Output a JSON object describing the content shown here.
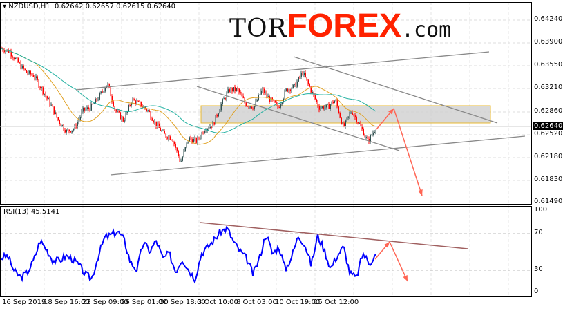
{
  "header": {
    "symbol": "NZDUSD,H1",
    "open": "0.62642",
    "high": "0.62657",
    "low": "0.62615",
    "close": "0.62640"
  },
  "logo": {
    "part1": "TOR",
    "part2": "FOREX",
    "part3": ".com"
  },
  "price_axis": {
    "ticks": [
      "0.64240",
      "0.63900",
      "0.63550",
      "0.63210",
      "0.62860",
      "0.62520",
      "0.62180",
      "0.61830",
      "0.61490"
    ],
    "current": "0.62640"
  },
  "rsi": {
    "label": "RSI(13) 45.5141",
    "levels": [
      "100",
      "70",
      "30",
      "0"
    ],
    "path": [
      43,
      45,
      28,
      22,
      27,
      40,
      62,
      52,
      40,
      40,
      45,
      42,
      35,
      25,
      20,
      45,
      65,
      68,
      72,
      63,
      38,
      30,
      60,
      50,
      62,
      42,
      48,
      28,
      42,
      30,
      20,
      48,
      55,
      63,
      72,
      75,
      60,
      50,
      42,
      25,
      43,
      70,
      47,
      55,
      30,
      45,
      67,
      58,
      35,
      67,
      52,
      31,
      45,
      55,
      26,
      21,
      48,
      37,
      46
    ]
  },
  "time_axis": {
    "labels": [
      "16 Sep 2019",
      "18 Sep 16:00",
      "23 Sep 09:00",
      "26 Sep 01:00",
      "30 Sep 18:00",
      "3 Oct 10:00",
      "8 Oct 03:00",
      "10 Oct 19:00",
      "15 Oct 12:00"
    ]
  },
  "price_path": [
    0.6382,
    0.6377,
    0.6361,
    0.6346,
    0.6341,
    0.632,
    0.6299,
    0.6274,
    0.6258,
    0.6263,
    0.6289,
    0.6294,
    0.631,
    0.633,
    0.6289,
    0.6274,
    0.6305,
    0.6299,
    0.6289,
    0.6268,
    0.6253,
    0.6248,
    0.6212,
    0.6248,
    0.6243,
    0.6263,
    0.6268,
    0.6299,
    0.632,
    0.632,
    0.6299,
    0.6294,
    0.632,
    0.6305,
    0.6294,
    0.632,
    0.6325,
    0.6346,
    0.632,
    0.6294,
    0.6294,
    0.6305,
    0.6263,
    0.6289,
    0.6268,
    0.6243,
    0.6264
  ],
  "colors": {
    "bull": "#2f4f4f",
    "bear": "#ff0000",
    "ma_fast": "#e0a020",
    "ma_slow": "#20b0a0",
    "rsi": "#0000ff",
    "arrow": "#ff6655",
    "zone_border": "#e8b830"
  }
}
